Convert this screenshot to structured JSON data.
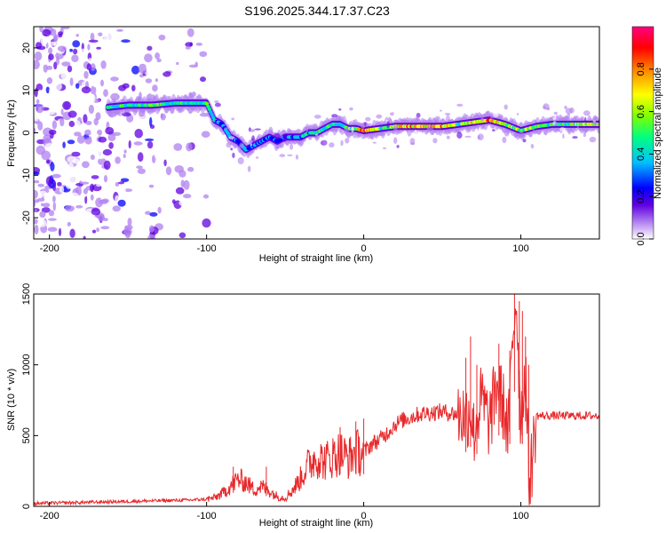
{
  "title": "S196.2025.344.17.37.C23",
  "chart_data": [
    {
      "type": "heatmap",
      "xlabel": "Height of straight line (km)",
      "ylabel": "Frequency (Hz)",
      "xlim": [
        -210,
        150
      ],
      "ylim": [
        -25,
        25
      ],
      "xticks": [
        -200,
        -100,
        0,
        100
      ],
      "yticks": [
        -20,
        -10,
        0,
        10,
        20
      ],
      "colorbar": {
        "label": "Normalized spectral amplitude",
        "range": [
          0,
          1
        ],
        "ticks": [
          0.0,
          0.2,
          0.4,
          0.6,
          0.8
        ],
        "tick_labels": [
          "0.0",
          "0.2",
          "0.4",
          "0.6",
          "0.8"
        ],
        "colors": [
          "#ffffff",
          "#b080f0",
          "#6000e0",
          "#0000ff",
          "#00c0ff",
          "#00ff80",
          "#80ff00",
          "#ffff00",
          "#ff8000",
          "#ff0000",
          "#ff0080"
        ]
      },
      "ridge": {
        "x": [
          -163,
          -150,
          -135,
          -120,
          -110,
          -100,
          -95,
          -90,
          -85,
          -80,
          -75,
          -70,
          -65,
          -60,
          -55,
          -50,
          -45,
          -40,
          -35,
          -30,
          -25,
          -20,
          -15,
          -10,
          -5,
          0,
          10,
          20,
          30,
          40,
          50,
          60,
          70,
          80,
          90,
          100,
          110,
          120,
          130,
          150
        ],
        "y": [
          6,
          6.5,
          6.5,
          7,
          7,
          7,
          3,
          2,
          -1,
          -2,
          -4,
          -3,
          -2,
          -1,
          -2,
          -1,
          -1,
          -1,
          0,
          0,
          1,
          2,
          2,
          1,
          1,
          0.5,
          1,
          1.5,
          1.5,
          1.5,
          1.5,
          2,
          2.5,
          3,
          2,
          0.5,
          1.5,
          2,
          2,
          2
        ],
        "amplitude": [
          0.5,
          0.5,
          0.55,
          0.5,
          0.5,
          0.5,
          0.45,
          0.4,
          0.4,
          0.35,
          0.4,
          0.4,
          0.35,
          0.35,
          0.3,
          0.35,
          0.4,
          0.4,
          0.45,
          0.5,
          0.5,
          0.55,
          0.5,
          0.55,
          0.65,
          0.9,
          0.6,
          0.7,
          0.8,
          0.75,
          0.8,
          0.6,
          0.7,
          0.85,
          0.6,
          0.6,
          0.6,
          0.55,
          0.6,
          0.7
        ]
      }
    },
    {
      "type": "line",
      "xlabel": "Height of straight line (km)",
      "ylabel": "SNR (10 * v/v)",
      "xlim": [
        -210,
        150
      ],
      "ylim": [
        0,
        1500
      ],
      "xticks": [
        -200,
        -100,
        0,
        100
      ],
      "yticks": [
        0,
        500,
        1000,
        1500
      ],
      "color": "#e8282a",
      "x": [
        -210,
        -190,
        -170,
        -150,
        -130,
        -110,
        -100,
        -95,
        -90,
        -85,
        -80,
        -75,
        -70,
        -65,
        -60,
        -55,
        -50,
        -45,
        -40,
        -35,
        -30,
        -25,
        -20,
        -15,
        -10,
        -5,
        0,
        5,
        10,
        15,
        20,
        25,
        30,
        35,
        40,
        45,
        50,
        55,
        60,
        65,
        68,
        70,
        75,
        80,
        85,
        90,
        92,
        95,
        97,
        100,
        103,
        105,
        107,
        110,
        120,
        130,
        140,
        150
      ],
      "y": [
        20,
        25,
        30,
        35,
        40,
        45,
        50,
        60,
        90,
        140,
        190,
        170,
        120,
        140,
        110,
        70,
        60,
        120,
        200,
        300,
        350,
        320,
        350,
        380,
        340,
        380,
        380,
        440,
        470,
        520,
        580,
        610,
        630,
        650,
        660,
        665,
        670,
        660,
        650,
        640,
        700,
        520,
        760,
        580,
        880,
        650,
        500,
        1200,
        1500,
        600,
        1000,
        200,
        300,
        640,
        640,
        640,
        640,
        640
      ],
      "spikes": [
        [
          -83,
          280
        ],
        [
          -62,
          280
        ],
        [
          -15,
          560
        ],
        [
          -5,
          600
        ],
        [
          0,
          620
        ],
        [
          65,
          1050
        ],
        [
          68,
          1200
        ],
        [
          72,
          1000
        ],
        [
          86,
          1150
        ],
        [
          93,
          1100
        ],
        [
          96,
          1500
        ],
        [
          99,
          1450
        ],
        [
          101,
          1380
        ],
        [
          103,
          1200
        ],
        [
          105,
          1000
        ]
      ]
    }
  ]
}
